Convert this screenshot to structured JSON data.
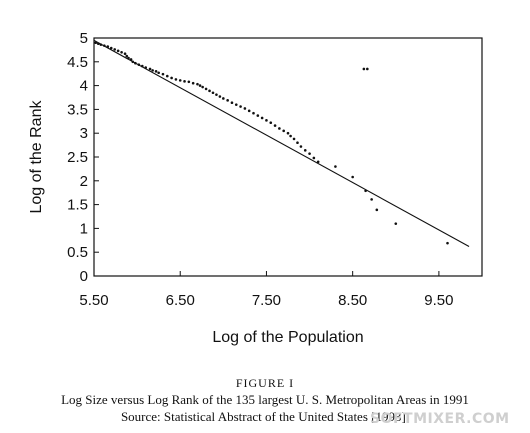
{
  "chart_data": {
    "type": "scatter",
    "xlabel": "Log of the Population",
    "ylabel": "Log of the Rank",
    "xlim": [
      5.5,
      10.0
    ],
    "ylim": [
      0,
      5
    ],
    "x_ticks": [
      5.5,
      6.5,
      7.5,
      8.5,
      9.5
    ],
    "x_tick_labels": [
      "5.50",
      "6.50",
      "7.50",
      "8.50",
      "9.50"
    ],
    "y_ticks": [
      0,
      0.5,
      1,
      1.5,
      2,
      2.5,
      3,
      3.5,
      4,
      4.5,
      5
    ],
    "y_tick_labels": [
      "0",
      "0.5",
      "1",
      "1.5",
      "2",
      "2.5",
      "3",
      "3.5",
      "4",
      "4.5",
      "5"
    ],
    "grid": false,
    "fit_line": {
      "x": [
        5.5,
        9.85
      ],
      "y": [
        4.95,
        0.62
      ]
    },
    "points": [
      [
        5.52,
        4.9
      ],
      [
        5.55,
        4.88
      ],
      [
        5.58,
        4.86
      ],
      [
        5.62,
        4.84
      ],
      [
        5.66,
        4.82
      ],
      [
        5.7,
        4.79
      ],
      [
        5.74,
        4.76
      ],
      [
        5.78,
        4.73
      ],
      [
        5.82,
        4.7
      ],
      [
        5.86,
        4.67
      ],
      [
        5.88,
        4.62
      ],
      [
        5.9,
        4.58
      ],
      [
        5.93,
        4.55
      ],
      [
        5.95,
        4.5
      ],
      [
        5.98,
        4.47
      ],
      [
        6.02,
        4.44
      ],
      [
        6.06,
        4.41
      ],
      [
        6.1,
        4.38
      ],
      [
        6.15,
        4.35
      ],
      [
        6.18,
        4.32
      ],
      [
        6.22,
        4.3
      ],
      [
        6.25,
        4.27
      ],
      [
        6.3,
        4.24
      ],
      [
        6.35,
        4.2
      ],
      [
        6.4,
        4.16
      ],
      [
        6.45,
        4.13
      ],
      [
        6.5,
        4.11
      ],
      [
        6.55,
        4.09
      ],
      [
        6.6,
        4.08
      ],
      [
        6.65,
        4.05
      ],
      [
        6.7,
        4.03
      ],
      [
        6.73,
        4.0
      ],
      [
        6.76,
        3.97
      ],
      [
        6.8,
        3.93
      ],
      [
        6.84,
        3.89
      ],
      [
        6.88,
        3.85
      ],
      [
        6.92,
        3.81
      ],
      [
        6.96,
        3.77
      ],
      [
        7.0,
        3.73
      ],
      [
        7.05,
        3.69
      ],
      [
        7.1,
        3.64
      ],
      [
        7.15,
        3.6
      ],
      [
        7.2,
        3.56
      ],
      [
        7.25,
        3.52
      ],
      [
        7.3,
        3.47
      ],
      [
        7.35,
        3.42
      ],
      [
        7.4,
        3.37
      ],
      [
        7.45,
        3.32
      ],
      [
        7.5,
        3.27
      ],
      [
        7.55,
        3.22
      ],
      [
        7.6,
        3.16
      ],
      [
        7.65,
        3.1
      ],
      [
        7.7,
        3.05
      ],
      [
        7.75,
        3.0
      ],
      [
        7.78,
        2.94
      ],
      [
        7.82,
        2.88
      ],
      [
        7.86,
        2.8
      ],
      [
        7.9,
        2.72
      ],
      [
        7.95,
        2.64
      ],
      [
        8.0,
        2.57
      ],
      [
        8.05,
        2.48
      ],
      [
        8.1,
        2.4
      ],
      [
        8.3,
        2.3
      ],
      [
        8.5,
        2.08
      ],
      [
        8.65,
        1.79
      ],
      [
        8.72,
        1.61
      ],
      [
        8.78,
        1.39
      ],
      [
        9.0,
        1.1
      ],
      [
        9.6,
        0.69
      ],
      [
        8.63,
        4.35
      ],
      [
        8.67,
        4.35
      ]
    ]
  },
  "caption": {
    "figure": "FIGURE I",
    "line1": "Log Size versus Log Rank of the 135 largest U. S. Metropolitan Areas in 1991",
    "line2": "Source: Statistical Abstract of the United States [1993]."
  },
  "watermark": "SOFTMIXER.COM",
  "colors": {
    "ink": "#111111",
    "background": "#ffffff",
    "watermark": "#cfcfcf"
  }
}
